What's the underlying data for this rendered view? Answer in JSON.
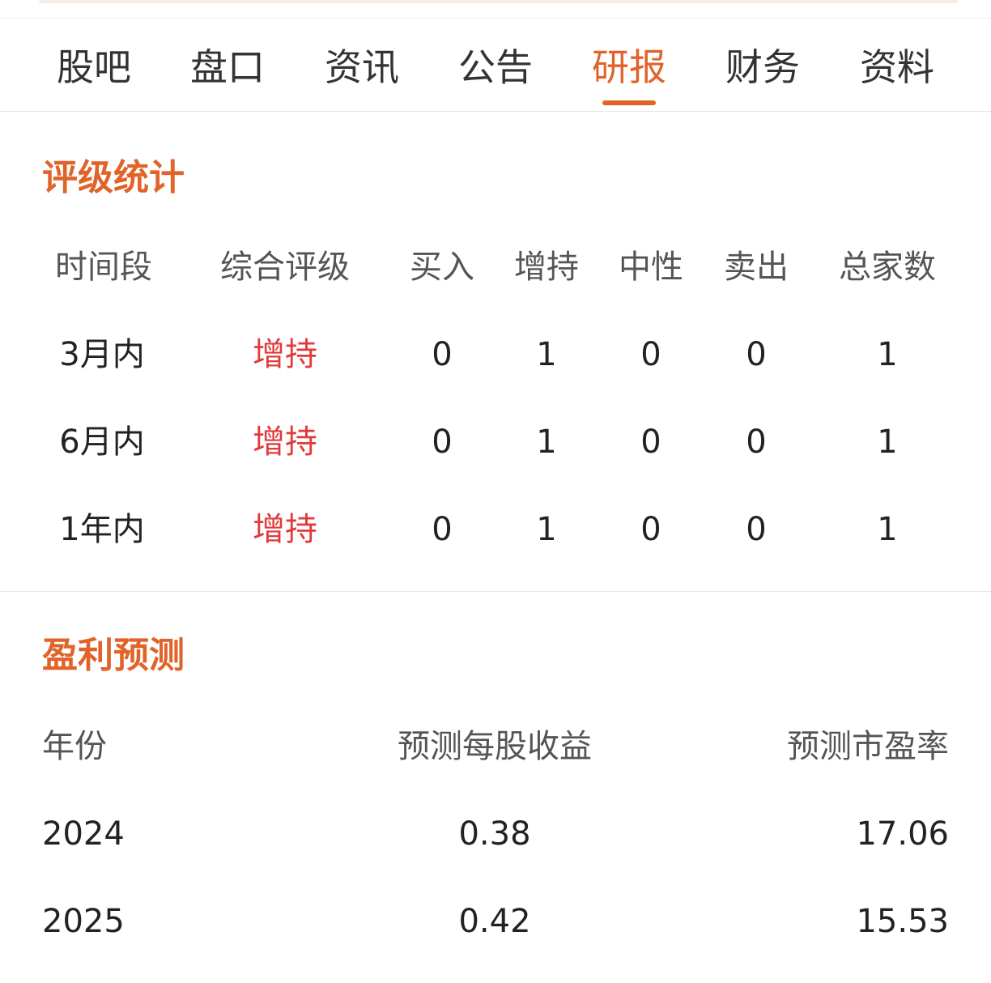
{
  "tabs": [
    {
      "label": "股吧"
    },
    {
      "label": "盘口"
    },
    {
      "label": "资讯"
    },
    {
      "label": "公告"
    },
    {
      "label": "研报",
      "active": true
    },
    {
      "label": "财务"
    },
    {
      "label": "资料"
    }
  ],
  "accent_color": "#e0642a",
  "rating_color": "#e03a3a",
  "rating_stats": {
    "title": "评级统计",
    "headers": [
      "时间段",
      "综合评级",
      "买入",
      "增持",
      "中性",
      "卖出",
      "总家数"
    ],
    "rows": [
      {
        "period": "3月内",
        "rating": "增持",
        "buy": "0",
        "overweight": "1",
        "neutral": "0",
        "sell": "0",
        "total": "1"
      },
      {
        "period": "6月内",
        "rating": "增持",
        "buy": "0",
        "overweight": "1",
        "neutral": "0",
        "sell": "0",
        "total": "1"
      },
      {
        "period": "1年内",
        "rating": "增持",
        "buy": "0",
        "overweight": "1",
        "neutral": "0",
        "sell": "0",
        "total": "1"
      }
    ]
  },
  "earnings_forecast": {
    "title": "盈利预测",
    "headers": [
      "年份",
      "预测每股收益",
      "预测市盈率"
    ],
    "rows": [
      {
        "year": "2024",
        "eps": "0.38",
        "pe": "17.06"
      },
      {
        "year": "2025",
        "eps": "0.42",
        "pe": "15.53"
      }
    ]
  }
}
